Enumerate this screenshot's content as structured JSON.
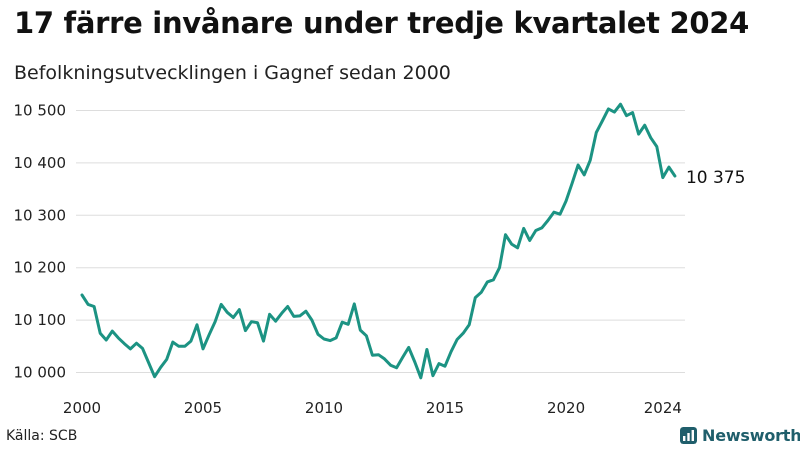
{
  "title": "17 färre invånare under tredje kvartalet 2024",
  "subtitle": "Befolkningsutvecklingen i Gagnef sedan 2000",
  "source": "Källa: SCB",
  "brand": {
    "name": "Newsworthy",
    "icon": "newsworthy-logo-icon",
    "color": "#1f5e6b"
  },
  "colors": {
    "line": "#1c9383",
    "grid": "#dddddd",
    "text": "#222222"
  },
  "chart_data": {
    "type": "line",
    "title": "17 färre invånare under tredje kvartalet 2024",
    "subtitle": "Befolkningsutvecklingen i Gagnef sedan 2000",
    "xlabel": "",
    "ylabel": "",
    "grid": true,
    "xlim": [
      2000.0,
      2024.75
    ],
    "ylim": [
      9980,
      10520
    ],
    "xticks": [
      {
        "value": 2000,
        "label": "2000"
      },
      {
        "value": 2005,
        "label": "2005"
      },
      {
        "value": 2010,
        "label": "2010"
      },
      {
        "value": 2015,
        "label": "2015"
      },
      {
        "value": 2020,
        "label": "2020"
      },
      {
        "value": 2024,
        "label": "2024"
      }
    ],
    "yticks": [
      {
        "value": 10000,
        "label": "10 000"
      },
      {
        "value": 10100,
        "label": "10 100"
      },
      {
        "value": 10200,
        "label": "10 200"
      },
      {
        "value": 10300,
        "label": "10 300"
      },
      {
        "value": 10400,
        "label": "10 400"
      },
      {
        "value": 10500,
        "label": "10 500"
      }
    ],
    "end_label": "10 375",
    "series": [
      {
        "x": [
          2000.0,
          2000.25,
          2000.5,
          2000.75,
          2001.0,
          2001.25,
          2001.5,
          2001.75,
          2002.0,
          2002.25,
          2002.5,
          2002.75,
          2003.0,
          2003.25,
          2003.5,
          2003.75,
          2004.0,
          2004.25,
          2004.5,
          2004.75,
          2005.0,
          2005.25,
          2005.5,
          2005.75,
          2006.0,
          2006.25,
          2006.5,
          2006.75,
          2007.0,
          2007.25,
          2007.5,
          2007.75,
          2008.0,
          2008.25,
          2008.5,
          2008.75,
          2009.0,
          2009.25,
          2009.5,
          2009.75,
          2010.0,
          2010.25,
          2010.5,
          2010.75,
          2011.0,
          2011.25,
          2011.5,
          2011.75,
          2012.0,
          2012.25,
          2012.5,
          2012.75,
          2013.0,
          2013.25,
          2013.5,
          2013.75,
          2014.0,
          2014.25,
          2014.5,
          2014.75,
          2015.0,
          2015.25,
          2015.5,
          2015.75,
          2016.0,
          2016.25,
          2016.5,
          2016.75,
          2017.0,
          2017.25,
          2017.5,
          2017.75,
          2018.0,
          2018.25,
          2018.5,
          2018.75,
          2019.0,
          2019.25,
          2019.5,
          2019.75,
          2020.0,
          2020.25,
          2020.5,
          2020.75,
          2021.0,
          2021.25,
          2021.5,
          2021.75,
          2022.0,
          2022.25,
          2022.5,
          2022.75,
          2023.0,
          2023.25,
          2023.5,
          2023.75,
          2024.0,
          2024.25,
          2024.5
        ],
        "values": [
          10148,
          10130,
          10126,
          10075,
          10062,
          10079,
          10066,
          10055,
          10045,
          10056,
          10046,
          10019,
          9992,
          10010,
          10025,
          10058,
          10050,
          10050,
          10060,
          10091,
          10045,
          10072,
          10097,
          10130,
          10115,
          10105,
          10120,
          10080,
          10097,
          10095,
          10060,
          10111,
          10098,
          10113,
          10126,
          10107,
          10108,
          10117,
          10100,
          10073,
          10064,
          10061,
          10066,
          10096,
          10092,
          10131,
          10081,
          10070,
          10033,
          10034,
          10026,
          10014,
          10009,
          10029,
          10048,
          10020,
          9990,
          10044,
          9994,
          10017,
          10012,
          10040,
          10063,
          10075,
          10091,
          10143,
          10153,
          10173,
          10177,
          10200,
          10263,
          10245,
          10238,
          10275,
          10252,
          10271,
          10276,
          10290,
          10306,
          10302,
          10327,
          10361,
          10396,
          10377,
          10405,
          10458,
          10480,
          10503,
          10497,
          10512,
          10490,
          10496,
          10455,
          10472,
          10448,
          10431,
          10372,
          10392,
          10375
        ]
      }
    ]
  }
}
